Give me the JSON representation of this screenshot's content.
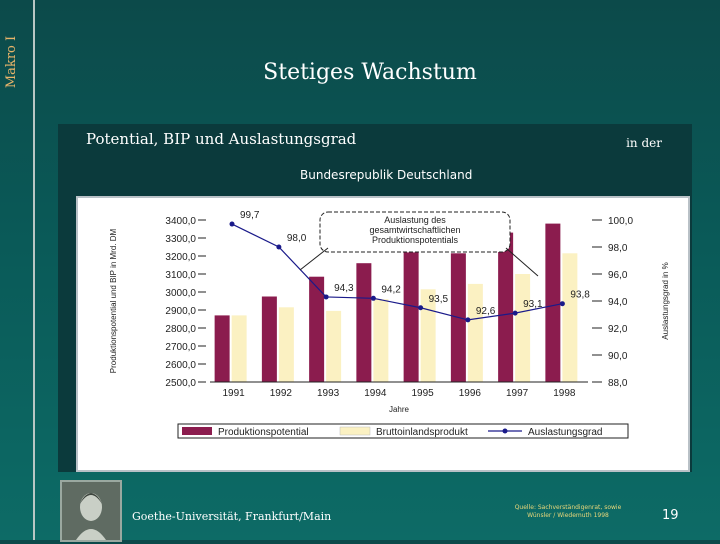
{
  "slide": {
    "side_label": "Makro I",
    "title": "Stetiges Wachstum",
    "subtitle_left": "Potential, BIP und Auslastungsgrad",
    "subtitle_right": "in der",
    "subtitle_2": "Bundesrepublik Deutschland",
    "footer_left": "Goethe-Universität, Frankfurt/Main",
    "source_line1": "Quelle: Sachverständigenrat, sowie",
    "source_line2": "Wünsler / Wiedemuth 1998",
    "page_number": "19"
  },
  "colors": {
    "potential": "#8b1c4e",
    "bip": "#fbf1c2",
    "line": "#1a1a8a"
  },
  "chart_data": {
    "type": "bar",
    "categories": [
      "1991",
      "1992",
      "1993",
      "1994",
      "1995",
      "1996",
      "1997",
      "1998"
    ],
    "xlabel": "Jahre",
    "ylabel": "Produktionspotential und BIP in Mrd. DM",
    "ylabel_right": "Auslastungsgrad in %",
    "ylim": [
      2500,
      3400
    ],
    "ylim_right": [
      88,
      100
    ],
    "yticks": [
      "3400,0",
      "3300,0",
      "3200,0",
      "3100,0",
      "3000,0",
      "2900,0",
      "2800,0",
      "2700,0",
      "2600,0",
      "2500,0"
    ],
    "yticks_right": [
      "100,0",
      "98,0",
      "96,0",
      "94,0",
      "92,0",
      "90,0",
      "88,0"
    ],
    "annotation": [
      "Auslastung des",
      "gesamtwirtschaftlichen",
      "Produktionspotentials"
    ],
    "series": [
      {
        "name": "Produktionspotential",
        "kind": "bar",
        "values": [
          2870,
          2975,
          3085,
          3160,
          3220,
          3215,
          3330,
          3380
        ]
      },
      {
        "name": "Bruttoinlandsprodukt",
        "kind": "bar",
        "values": [
          2870,
          2915,
          2895,
          2960,
          3015,
          3045,
          3100,
          3215
        ]
      },
      {
        "name": "Auslastungsgrad",
        "kind": "line",
        "values": [
          99.7,
          98.0,
          94.3,
          94.2,
          93.5,
          92.6,
          93.1,
          93.8
        ],
        "labels": [
          "99,7",
          "98,0",
          "94,3",
          "94,2",
          "93,5",
          "92,6",
          "93,1",
          "93,8"
        ]
      }
    ]
  }
}
